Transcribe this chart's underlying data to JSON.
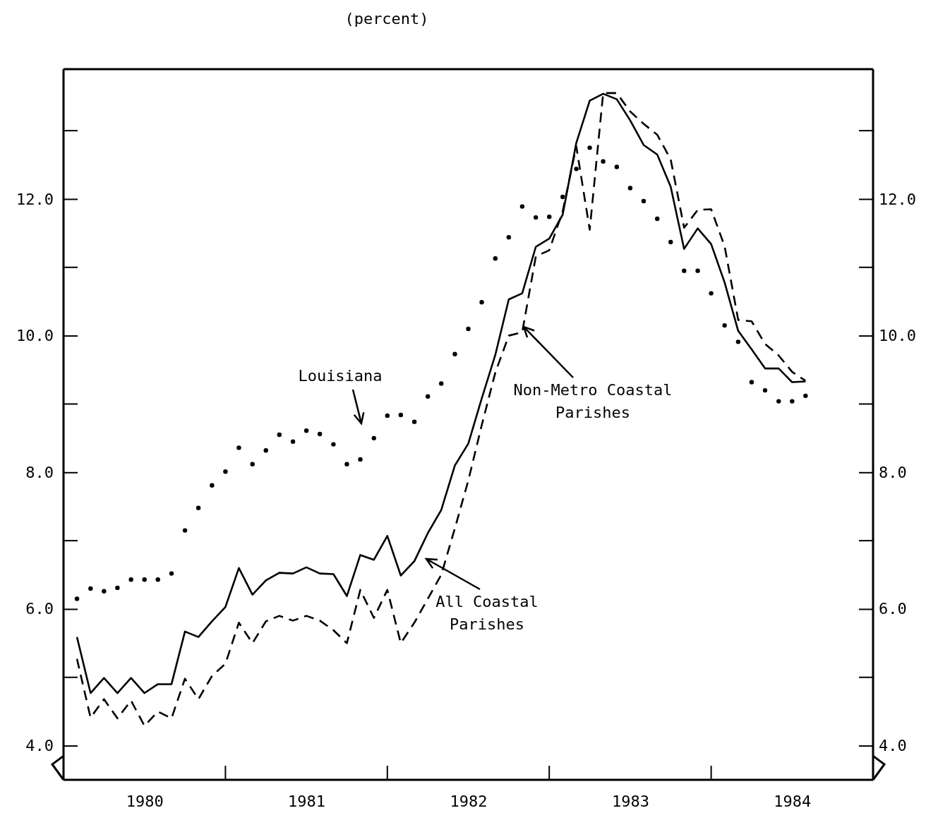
{
  "chart_data": {
    "type": "line",
    "title": "(percent)",
    "x": [
      1980.083,
      1980.167,
      1980.25,
      1980.333,
      1980.417,
      1980.5,
      1980.583,
      1980.667,
      1980.75,
      1980.833,
      1980.917,
      1981,
      1981.083,
      1981.167,
      1981.25,
      1981.333,
      1981.417,
      1981.5,
      1981.583,
      1981.667,
      1981.75,
      1981.833,
      1981.917,
      1982,
      1982.083,
      1982.167,
      1982.25,
      1982.333,
      1982.417,
      1982.5,
      1982.583,
      1982.667,
      1982.75,
      1982.833,
      1982.917,
      1983,
      1983.083,
      1983.167,
      1983.25,
      1983.333,
      1983.417,
      1983.5,
      1983.583,
      1983.667,
      1983.75,
      1983.833,
      1983.917,
      1984,
      1984.083,
      1984.167,
      1984.25,
      1984.333,
      1984.417,
      1984.5,
      1984.583
    ],
    "series": [
      {
        "name": "All Coastal Parishes",
        "type": "line",
        "line_style": "solid",
        "color": "#000000",
        "values": [
          5.59,
          4.77,
          4.99,
          4.77,
          4.99,
          4.77,
          4.9,
          4.9,
          5.67,
          5.59,
          5.82,
          6.03,
          6.6,
          6.21,
          6.42,
          6.53,
          6.52,
          6.61,
          6.52,
          6.51,
          6.19,
          6.79,
          6.72,
          7.07,
          6.49,
          6.7,
          7.11,
          7.45,
          8.1,
          8.42,
          9.08,
          9.72,
          10.53,
          10.62,
          11.3,
          11.42,
          11.77,
          12.82,
          13.44,
          13.54,
          13.46,
          13.15,
          12.79,
          12.65,
          12.18,
          11.27,
          11.57,
          11.34,
          10.78,
          10.07,
          9.8,
          9.52,
          9.52,
          9.32,
          9.33
        ]
      },
      {
        "name": "Non-Metro Coastal Parishes",
        "type": "line",
        "line_style": "dashed",
        "color": "#000000",
        "values": [
          5.27,
          4.41,
          4.68,
          4.4,
          4.66,
          4.29,
          4.5,
          4.4,
          4.98,
          4.68,
          5.02,
          5.2,
          5.8,
          5.5,
          5.82,
          5.9,
          5.83,
          5.9,
          5.83,
          5.69,
          5.5,
          6.28,
          5.87,
          6.28,
          5.5,
          5.8,
          6.15,
          6.5,
          7.18,
          7.88,
          8.69,
          9.46,
          10.0,
          10.05,
          11.16,
          11.25,
          11.82,
          12.77,
          11.55,
          13.55,
          13.55,
          13.28,
          13.1,
          12.94,
          12.58,
          11.58,
          11.84,
          11.85,
          11.31,
          10.23,
          10.21,
          9.88,
          9.71,
          9.47,
          9.34
        ]
      },
      {
        "name": "Louisiana",
        "type": "scatter",
        "marker": "circle",
        "color": "#000000",
        "values": [
          6.15,
          6.3,
          6.26,
          6.31,
          6.43,
          6.43,
          6.43,
          6.52,
          7.15,
          7.48,
          7.81,
          8.01,
          8.36,
          8.12,
          8.32,
          8.55,
          8.45,
          8.61,
          8.56,
          8.41,
          8.12,
          8.19,
          8.5,
          8.83,
          8.84,
          8.74,
          9.11,
          9.3,
          9.73,
          10.1,
          10.49,
          11.13,
          11.44,
          11.89,
          11.73,
          11.74,
          12.03,
          12.44,
          12.75,
          12.55,
          12.47,
          12.16,
          11.97,
          11.71,
          11.37,
          10.95,
          10.95,
          10.62,
          10.15,
          9.91,
          9.32,
          9.2,
          9.04,
          9.04,
          9.12
        ]
      }
    ],
    "xlim": [
      1980,
      1985
    ],
    "xticks": [
      {
        "value": 1980.5,
        "label": "1980"
      },
      {
        "value": 1981.5,
        "label": "1981"
      },
      {
        "value": 1982.5,
        "label": "1982"
      },
      {
        "value": 1983.5,
        "label": "1983"
      },
      {
        "value": 1984.5,
        "label": "1984"
      }
    ],
    "ylim": [
      3.5,
      13.9
    ],
    "yticks": [
      {
        "value": 4,
        "label": "4.0"
      },
      {
        "value": 6,
        "label": "6.0"
      },
      {
        "value": 8,
        "label": "8.0"
      },
      {
        "value": 10,
        "label": "10.0"
      },
      {
        "value": 12,
        "label": "12.0"
      }
    ],
    "y2lim": [
      3.5,
      13.9
    ],
    "y2ticks": [
      {
        "value": 4,
        "label": "4.0"
      },
      {
        "value": 6,
        "label": "6.0"
      },
      {
        "value": 8,
        "label": "8.0"
      },
      {
        "value": 10,
        "label": "10.0"
      },
      {
        "value": 12,
        "label": "12.0"
      }
    ]
  }
}
